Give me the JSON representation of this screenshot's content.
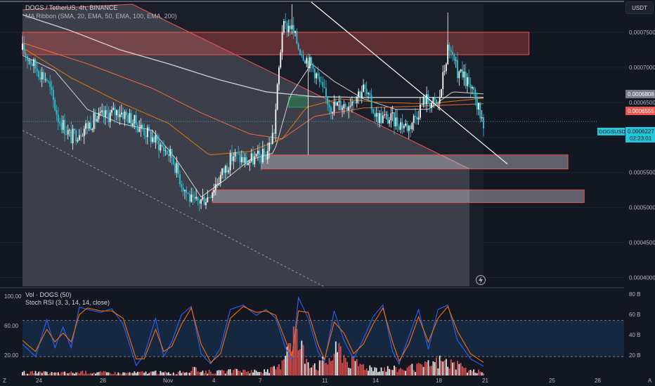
{
  "header": {
    "symbol_line": "DOGS / TetherUS, 4h, BINANCE",
    "indicator_line": "MA Ribbon (SMA, 20, EMA, 50, EMA, 100, EMA, 200)",
    "quote_button": "USDT"
  },
  "lower_pane": {
    "volume_label": "Vol · DOGS (50)",
    "stoch_label": "Stoch RSI (3, 3, 14, 14, close)",
    "stoch_ticks": [
      "100.00",
      "60.00",
      "20.00"
    ],
    "volume_ticks": [
      "80 B",
      "60 B",
      "40 B",
      "20 B"
    ]
  },
  "price_axis": {
    "ticks": [
      "0.0007500",
      "0.0007000",
      "0.0006500",
      "0.0006000",
      "0.0005500",
      "0.0005000",
      "0.0004500",
      "0.0004000"
    ],
    "tags": {
      "grey_price": "0.0006808",
      "red_price": "0.0006555",
      "symbol": "DOGSUSDT",
      "last_price": "0.0006227",
      "countdown": "02:23:01"
    }
  },
  "time_axis": {
    "ticks": [
      "24",
      "28",
      "Nov",
      "4",
      "7",
      "11",
      "14",
      "18",
      "21",
      "25",
      "28"
    ],
    "corner_left": "Z",
    "corner_right": "A"
  },
  "colors": {
    "up": "#26c6da",
    "down": "#ef5350",
    "white_candle": "#ffffff",
    "sma20": "#e0e0e0",
    "ema50": "#f57c00",
    "ema100": "#ff7043",
    "ema200": "#e0e0e0",
    "stoch_k": "#2962ff",
    "stoch_d": "#ff6d00"
  },
  "icons": {
    "lightning": "lightning-icon"
  },
  "chart_data": {
    "type": "candlestick",
    "title": "DOGS / TetherUS, 4h, BINANCE",
    "timeframe": "4h",
    "y_axis_ticks": [
      0.00075,
      0.0007,
      0.00065,
      0.0006,
      0.00055,
      0.0005,
      0.00045,
      0.0004
    ],
    "ylim": [
      0.0003875,
      0.00079
    ],
    "last_price": 0.0006227,
    "x_ticks": [
      "24",
      "28",
      "Nov",
      "4",
      "7",
      "11",
      "14",
      "18",
      "21",
      "25",
      "28"
    ],
    "close_path": [
      [
        0,
        0.000725
      ],
      [
        8,
        0.0007
      ],
      [
        15,
        0.000683
      ],
      [
        22,
        0.000628
      ],
      [
        30,
        0.0006
      ],
      [
        45,
        0.000626
      ],
      [
        60,
        0.000638
      ],
      [
        72,
        0.000616
      ],
      [
        82,
        0.000595
      ],
      [
        92,
        0.000573
      ],
      [
        98,
        0.000535
      ],
      [
        105,
        0.000505
      ],
      [
        114,
        0.000515
      ],
      [
        122,
        0.000545
      ],
      [
        130,
        0.000575
      ],
      [
        138,
        0.000565
      ],
      [
        150,
        0.000575
      ],
      [
        155,
        0.00061
      ],
      [
        160,
        0.000755
      ],
      [
        165,
        0.00076
      ],
      [
        170,
        0.00073
      ],
      [
        180,
        0.000695
      ],
      [
        185,
        0.000665
      ],
      [
        190,
        0.000645
      ],
      [
        200,
        0.000648
      ],
      [
        210,
        0.00067
      ],
      [
        218,
        0.00063
      ],
      [
        228,
        0.000625
      ],
      [
        238,
        0.000615
      ],
      [
        248,
        0.000655
      ],
      [
        256,
        0.000645
      ],
      [
        262,
        0.000725
      ],
      [
        268,
        0.000695
      ],
      [
        275,
        0.000675
      ],
      [
        284,
        0.000623
      ]
    ],
    "moving_averages": [
      {
        "name": "SMA 20",
        "points": [
          [
            0,
            0.000717
          ],
          [
            20,
            0.000695
          ],
          [
            40,
            0.00064
          ],
          [
            60,
            0.00062
          ],
          [
            80,
            0.00061
          ],
          [
            95,
            0.000568
          ],
          [
            110,
            0.000515
          ],
          [
            125,
            0.00054
          ],
          [
            140,
            0.000568
          ],
          [
            155,
            0.000578
          ],
          [
            165,
            0.00066
          ],
          [
            178,
            0.000705
          ],
          [
            192,
            0.00068
          ],
          [
            210,
            0.000655
          ],
          [
            230,
            0.00064
          ],
          [
            250,
            0.00064
          ],
          [
            265,
            0.000665
          ],
          [
            284,
            0.000662
          ]
        ]
      },
      {
        "name": "EMA 50",
        "points": [
          [
            0,
            0.000728
          ],
          [
            30,
            0.000685
          ],
          [
            60,
            0.00065
          ],
          [
            90,
            0.00062
          ],
          [
            115,
            0.000575
          ],
          [
            140,
            0.00058
          ],
          [
            160,
            0.000598
          ],
          [
            175,
            0.000643
          ],
          [
            195,
            0.000655
          ],
          [
            220,
            0.00065
          ],
          [
            250,
            0.000648
          ],
          [
            284,
            0.000656
          ]
        ]
      },
      {
        "name": "EMA 100",
        "points": [
          [
            0,
            0.000735
          ],
          [
            40,
            0.000705
          ],
          [
            80,
            0.00067
          ],
          [
            110,
            0.000635
          ],
          [
            140,
            0.000605
          ],
          [
            160,
            0.000598
          ],
          [
            180,
            0.00063
          ],
          [
            210,
            0.000642
          ],
          [
            250,
            0.000645
          ],
          [
            284,
            0.000648
          ]
        ]
      },
      {
        "name": "EMA 200",
        "points": [
          [
            0,
            0.000775
          ],
          [
            30,
            0.000752
          ],
          [
            60,
            0.000725
          ],
          [
            90,
            0.000705
          ],
          [
            120,
            0.000683
          ],
          [
            150,
            0.000665
          ],
          [
            180,
            0.000658
          ],
          [
            210,
            0.000657
          ],
          [
            250,
            0.000657
          ],
          [
            284,
            0.000657
          ]
        ]
      }
    ],
    "zones": [
      {
        "color": "red",
        "x0": 0,
        "x1": 312,
        "y_top": 0.00075,
        "y_bottom": 0.000718
      },
      {
        "color": "grey",
        "x0": 147,
        "x1": 336,
        "y_top": 0.000575,
        "y_bottom": 0.000555
      },
      {
        "color": "grey",
        "x0": 117,
        "x1": 346,
        "y_top": 0.000525,
        "y_bottom": 0.000507
      },
      {
        "color": "green",
        "x0": 164,
        "x1": 176,
        "y_top": 0.000658,
        "y_bottom": 0.000643
      }
    ],
    "stoch_rsi": {
      "ylim": [
        0,
        100
      ],
      "ticks": [
        100,
        60,
        20
      ],
      "k": [
        [
          0,
          35
        ],
        [
          8,
          18
        ],
        [
          15,
          68
        ],
        [
          20,
          30
        ],
        [
          25,
          58
        ],
        [
          30,
          30
        ],
        [
          35,
          85
        ],
        [
          40,
          82
        ],
        [
          48,
          78
        ],
        [
          55,
          83
        ],
        [
          62,
          62
        ],
        [
          70,
          6
        ],
        [
          75,
          20
        ],
        [
          82,
          70
        ],
        [
          87,
          18
        ],
        [
          92,
          38
        ],
        [
          98,
          75
        ],
        [
          104,
          86
        ],
        [
          110,
          22
        ],
        [
          116,
          8
        ],
        [
          122,
          30
        ],
        [
          128,
          82
        ],
        [
          136,
          88
        ],
        [
          144,
          74
        ],
        [
          150,
          82
        ],
        [
          156,
          70
        ],
        [
          162,
          30
        ],
        [
          166,
          14
        ],
        [
          170,
          98
        ],
        [
          176,
          70
        ],
        [
          182,
          25
        ],
        [
          186,
          10
        ],
        [
          192,
          80
        ],
        [
          198,
          40
        ],
        [
          204,
          15
        ],
        [
          210,
          42
        ],
        [
          216,
          72
        ],
        [
          222,
          88
        ],
        [
          228,
          25
        ],
        [
          232,
          8
        ],
        [
          238,
          45
        ],
        [
          244,
          82
        ],
        [
          250,
          28
        ],
        [
          256,
          82
        ],
        [
          262,
          88
        ],
        [
          268,
          40
        ],
        [
          276,
          15
        ],
        [
          284,
          5
        ]
      ],
      "d": [
        [
          0,
          40
        ],
        [
          8,
          25
        ],
        [
          15,
          55
        ],
        [
          20,
          38
        ],
        [
          25,
          50
        ],
        [
          30,
          38
        ],
        [
          35,
          75
        ],
        [
          40,
          84
        ],
        [
          48,
          80
        ],
        [
          55,
          80
        ],
        [
          62,
          70
        ],
        [
          70,
          15
        ],
        [
          75,
          15
        ],
        [
          82,
          55
        ],
        [
          87,
          25
        ],
        [
          92,
          32
        ],
        [
          98,
          62
        ],
        [
          104,
          84
        ],
        [
          110,
          35
        ],
        [
          116,
          10
        ],
        [
          122,
          22
        ],
        [
          128,
          70
        ],
        [
          136,
          86
        ],
        [
          144,
          78
        ],
        [
          150,
          80
        ],
        [
          156,
          74
        ],
        [
          162,
          40
        ],
        [
          166,
          18
        ],
        [
          170,
          80
        ],
        [
          176,
          78
        ],
        [
          182,
          35
        ],
        [
          186,
          14
        ],
        [
          192,
          65
        ],
        [
          198,
          50
        ],
        [
          204,
          22
        ],
        [
          210,
          35
        ],
        [
          216,
          62
        ],
        [
          222,
          84
        ],
        [
          228,
          38
        ],
        [
          232,
          12
        ],
        [
          238,
          35
        ],
        [
          244,
          72
        ],
        [
          250,
          38
        ],
        [
          256,
          70
        ],
        [
          262,
          86
        ],
        [
          268,
          52
        ],
        [
          276,
          22
        ],
        [
          284,
          10
        ]
      ]
    },
    "volume": {
      "ylim": [
        0,
        85
      ],
      "ticks_b": [
        80,
        60,
        40,
        20
      ],
      "peaks": [
        [
          0,
          4
        ],
        [
          20,
          3
        ],
        [
          40,
          4
        ],
        [
          60,
          3
        ],
        [
          80,
          4
        ],
        [
          95,
          3
        ],
        [
          105,
          7
        ],
        [
          118,
          4
        ],
        [
          135,
          6
        ],
        [
          150,
          5
        ],
        [
          158,
          10
        ],
        [
          162,
          36
        ],
        [
          166,
          58
        ],
        [
          170,
          40
        ],
        [
          175,
          22
        ],
        [
          182,
          12
        ],
        [
          190,
          22
        ],
        [
          196,
          34
        ],
        [
          200,
          18
        ],
        [
          215,
          10
        ],
        [
          230,
          8
        ],
        [
          245,
          10
        ],
        [
          258,
          18
        ],
        [
          265,
          14
        ],
        [
          275,
          6
        ],
        [
          284,
          4
        ]
      ]
    }
  }
}
